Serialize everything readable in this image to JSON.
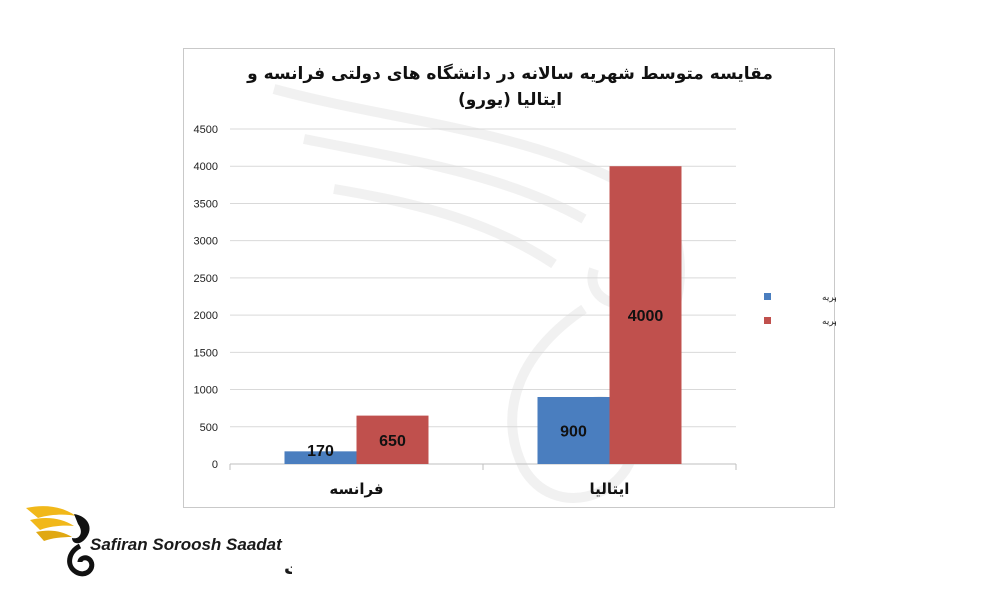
{
  "chart_data": {
    "type": "bar",
    "title_lines": [
      "مقایسه متوسط شهریه سالانه در دانشگاه های دولتی فرانسه و",
      "ایتالیا (یورو)"
    ],
    "categories": [
      "فرانسه",
      "ایتالیا"
    ],
    "series": [
      {
        "name": "حداقل شهریه",
        "values": [
          170,
          900
        ],
        "color": "#4a7ebf"
      },
      {
        "name": "حداکثر شهریه",
        "values": [
          650,
          4000
        ],
        "color": "#c0504d"
      }
    ],
    "ylim": [
      0,
      4500
    ],
    "yticks": [
      0,
      500,
      1000,
      1500,
      2000,
      2500,
      3000,
      3500,
      4000,
      4500
    ],
    "grid": true,
    "legend": "right"
  },
  "logo": {
    "text_en": "Safiran Soroosh Saadat",
    "text_fa": "سفیران سروش سعادت"
  }
}
